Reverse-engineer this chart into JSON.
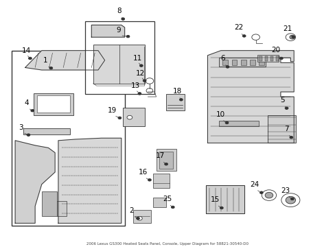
{
  "bg_color": "#ffffff",
  "line_color": "#333333",
  "title": "2006 Lexus GS300 Heated Seats Panel, Console, Upper Diagram for 58821-30540-D0",
  "font_size": 7,
  "label_font_size": 7.5
}
